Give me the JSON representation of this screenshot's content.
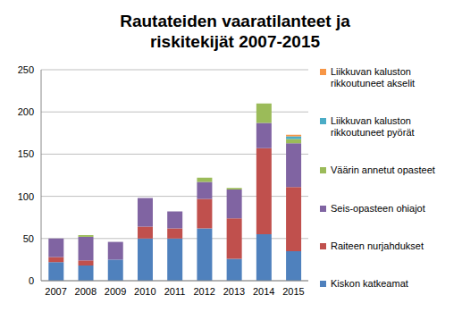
{
  "chart_data": {
    "type": "bar",
    "title": "Rautateiden vaaratilanteet ja riskitekijät 2007-2015",
    "stacked": true,
    "grid": true,
    "legend": "right",
    "categories": [
      "2007",
      "2008",
      "2009",
      "2010",
      "2011",
      "2012",
      "2013",
      "2014",
      "2015"
    ],
    "ylim": [
      0,
      250
    ],
    "yticks": [
      0,
      50,
      100,
      150,
      200,
      250
    ],
    "series": [
      {
        "name": "Kiskon katkeamat",
        "color": "#4f81bd",
        "values": [
          22,
          18,
          25,
          50,
          50,
          62,
          26,
          55,
          35
        ]
      },
      {
        "name": "Raiteen nurjahdukset",
        "color": "#c0504d",
        "values": [
          6,
          6,
          0,
          14,
          12,
          35,
          48,
          102,
          76
        ]
      },
      {
        "name": "Seis-opasteen ohiajot",
        "color": "#8064a2",
        "values": [
          22,
          28,
          21,
          34,
          20,
          20,
          34,
          30,
          52
        ]
      },
      {
        "name": "Väärin annetut opasteet",
        "color": "#9bbb59",
        "values": [
          0,
          2,
          0,
          0,
          0,
          5,
          2,
          23,
          5
        ]
      },
      {
        "name": "Liikkuvan kaluston rikkoutuneet pyörät",
        "color": "#4bacc6",
        "values": [
          0,
          0,
          0,
          0,
          0,
          0,
          0,
          0,
          3
        ]
      },
      {
        "name": "Liikkuvan kaluston rikkoutuneet akselit",
        "color": "#f79646",
        "values": [
          0,
          0,
          0,
          0,
          0,
          0,
          0,
          0,
          2
        ]
      }
    ]
  }
}
